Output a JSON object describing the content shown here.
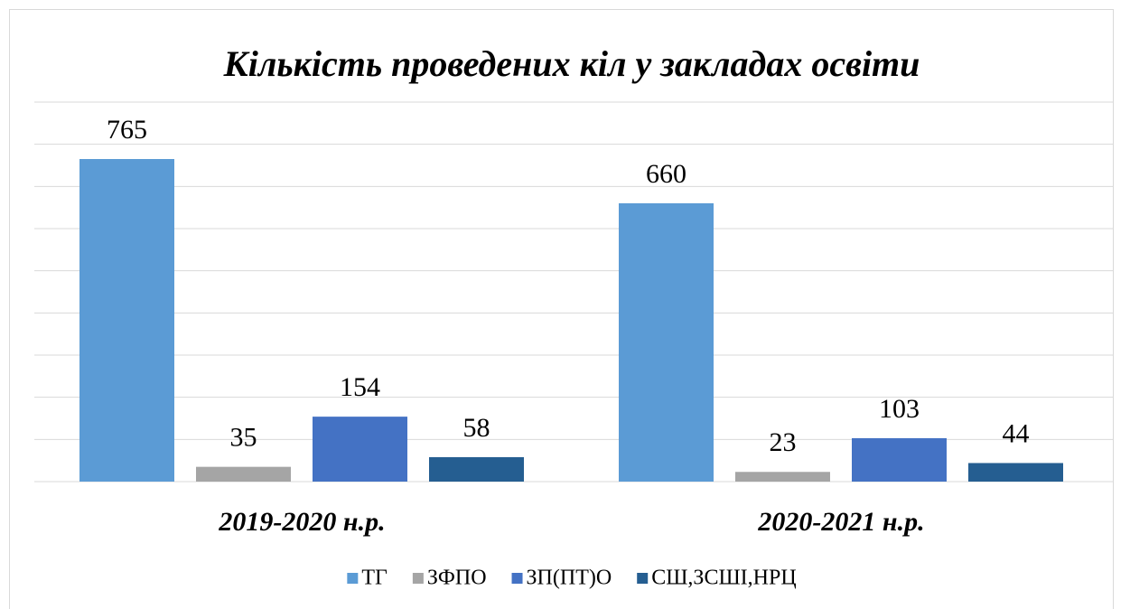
{
  "chart_data": {
    "type": "bar",
    "title": "Кількість проведених кіл у закладах освіти",
    "categories": [
      "2019-2020 н.р.",
      "2020-2021 н.р."
    ],
    "series": [
      {
        "name": "ТГ",
        "color": "#5b9bd5",
        "values": [
          765,
          660
        ]
      },
      {
        "name": "ЗФПО",
        "color": "#a5a5a5",
        "values": [
          35,
          23
        ]
      },
      {
        "name": "ЗП(ПТ)О",
        "color": "#4472c4",
        "values": [
          154,
          103
        ]
      },
      {
        "name": "СШ,ЗСШІ,НРЦ",
        "color": "#255e91",
        "values": [
          58,
          44
        ]
      }
    ],
    "ylim": [
      0,
      900
    ],
    "yticks": [
      0,
      100,
      200,
      300,
      400,
      500,
      600,
      700,
      800,
      900
    ],
    "grid": true,
    "legend": "bottom"
  }
}
